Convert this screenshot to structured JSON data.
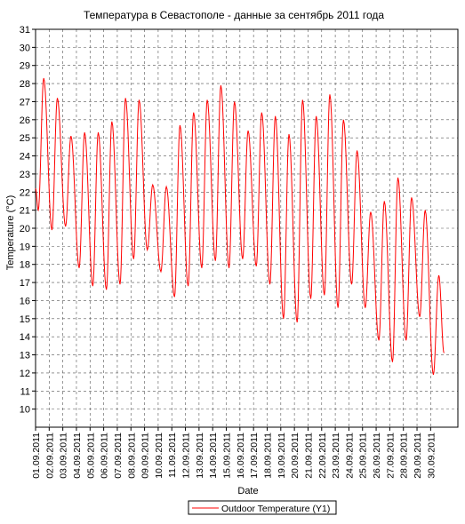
{
  "chart_data": {
    "type": "line",
    "title": "Температура в Севастополе - данные за сентябрь 2011 года",
    "xlabel": "Date",
    "ylabel": "Temperature (°C)",
    "ylim": [
      9,
      31
    ],
    "yticks": [
      10,
      11,
      12,
      13,
      14,
      15,
      16,
      17,
      18,
      19,
      20,
      21,
      22,
      23,
      24,
      25,
      26,
      27,
      28,
      29,
      30,
      31
    ],
    "xlim": [
      "01.09.2011 00:00",
      "01.10.2011 00:00"
    ],
    "xticks": [
      "01.09.2011",
      "02.09.2011",
      "03.09.2011",
      "04.09.2011",
      "05.09.2011",
      "06.09.2011",
      "07.09.2011",
      "08.09.2011",
      "09.09.2011",
      "10.09.2011",
      "11.09.2011",
      "12.09.2011",
      "13.09.2011",
      "14.09.2011",
      "15.09.2011",
      "16.09.2011",
      "17.09.2011",
      "18.09.2011",
      "19.09.2011",
      "20.09.2011",
      "21.09.2011",
      "22.09.2011",
      "23.09.2011",
      "24.09.2011",
      "25.09.2011",
      "26.09.2011",
      "27.09.2011",
      "28.09.2011",
      "29.09.2011",
      "30.09.2011"
    ],
    "grid": true,
    "legend": "bottom-center",
    "color": "#ff0000",
    "series": [
      {
        "name": "Outdoor Temperature (Y1)",
        "x": [
          "01.09.2011",
          "02.09.2011",
          "03.09.2011",
          "04.09.2011",
          "05.09.2011",
          "06.09.2011",
          "07.09.2011",
          "08.09.2011",
          "09.09.2011",
          "10.09.2011",
          "11.09.2011",
          "12.09.2011",
          "13.09.2011",
          "14.09.2011",
          "15.09.2011",
          "16.09.2011",
          "17.09.2011",
          "18.09.2011",
          "19.09.2011",
          "20.09.2011",
          "21.09.2011",
          "22.09.2011",
          "23.09.2011",
          "24.09.2011",
          "25.09.2011",
          "26.09.2011",
          "27.09.2011",
          "28.09.2011",
          "29.09.2011",
          "30.09.2011"
        ],
        "daily_max": [
          28.3,
          27.2,
          25.1,
          25.3,
          25.3,
          25.9,
          27.2,
          27.1,
          22.4,
          22.3,
          25.7,
          26.4,
          27.1,
          27.9,
          27.0,
          25.4,
          26.4,
          26.2,
          25.2,
          27.1,
          26.2,
          27.4,
          26.0,
          24.3,
          20.9,
          21.5,
          22.8,
          21.7,
          21.0,
          17.4
        ],
        "daily_min": [
          21.0,
          19.9,
          20.1,
          17.8,
          16.8,
          16.6,
          16.9,
          18.3,
          18.8,
          17.6,
          16.2,
          16.8,
          17.8,
          18.2,
          17.8,
          18.3,
          17.9,
          16.9,
          15.0,
          14.8,
          16.1,
          16.3,
          15.6,
          16.9,
          15.6,
          13.8,
          12.6,
          13.8,
          15.1,
          11.9
        ]
      }
    ]
  }
}
